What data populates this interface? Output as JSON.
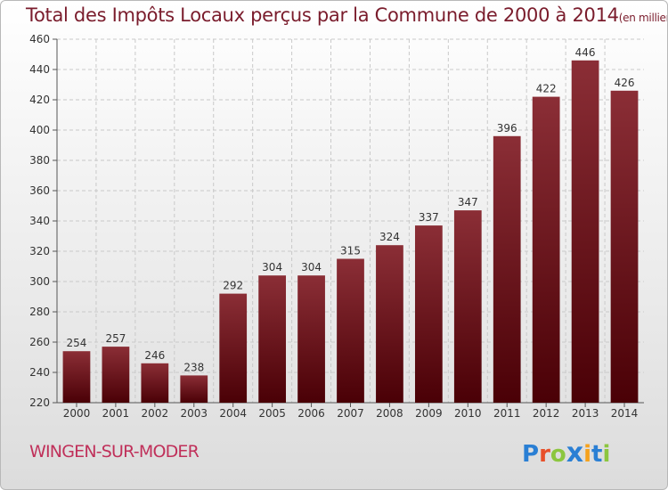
{
  "title": "Total des Impôts Locaux perçus par la Commune de 2000 à 2014",
  "title_unit": "(en milliers d'€)",
  "commune": "WINGEN-SUR-MODER",
  "logo": {
    "letters": [
      "P",
      "r",
      "o",
      "x",
      "i",
      "t",
      "i"
    ],
    "colors": [
      "#2a7fd4",
      "#e8502a",
      "#8cc63f",
      "#2a7fd4",
      "#f6a21c",
      "#2a7fd4",
      "#8cc63f"
    ]
  },
  "colors": {
    "bar_top": "#8b2e36",
    "bar_bottom": "#4a0006",
    "grid": "#c9c9c9",
    "text": "#333333"
  },
  "chart_data": {
    "type": "bar",
    "categories": [
      "2000",
      "2001",
      "2002",
      "2003",
      "2004",
      "2005",
      "2006",
      "2007",
      "2008",
      "2009",
      "2010",
      "2011",
      "2012",
      "2013",
      "2014"
    ],
    "values": [
      254,
      257,
      246,
      238,
      292,
      304,
      304,
      315,
      324,
      337,
      347,
      396,
      422,
      446,
      426
    ],
    "data_labels": [
      "254",
      "257",
      "246",
      "238",
      "292",
      "304",
      "304",
      "315",
      "324",
      "337",
      "347",
      "396",
      "422",
      "446",
      "426"
    ],
    "y_ticks": [
      "220",
      "240",
      "260",
      "280",
      "300",
      "320",
      "340",
      "360",
      "380",
      "400",
      "420",
      "440",
      "460"
    ],
    "ylim": [
      220,
      460
    ],
    "grid": true,
    "legend": "none",
    "xlabel": "",
    "ylabel": ""
  }
}
